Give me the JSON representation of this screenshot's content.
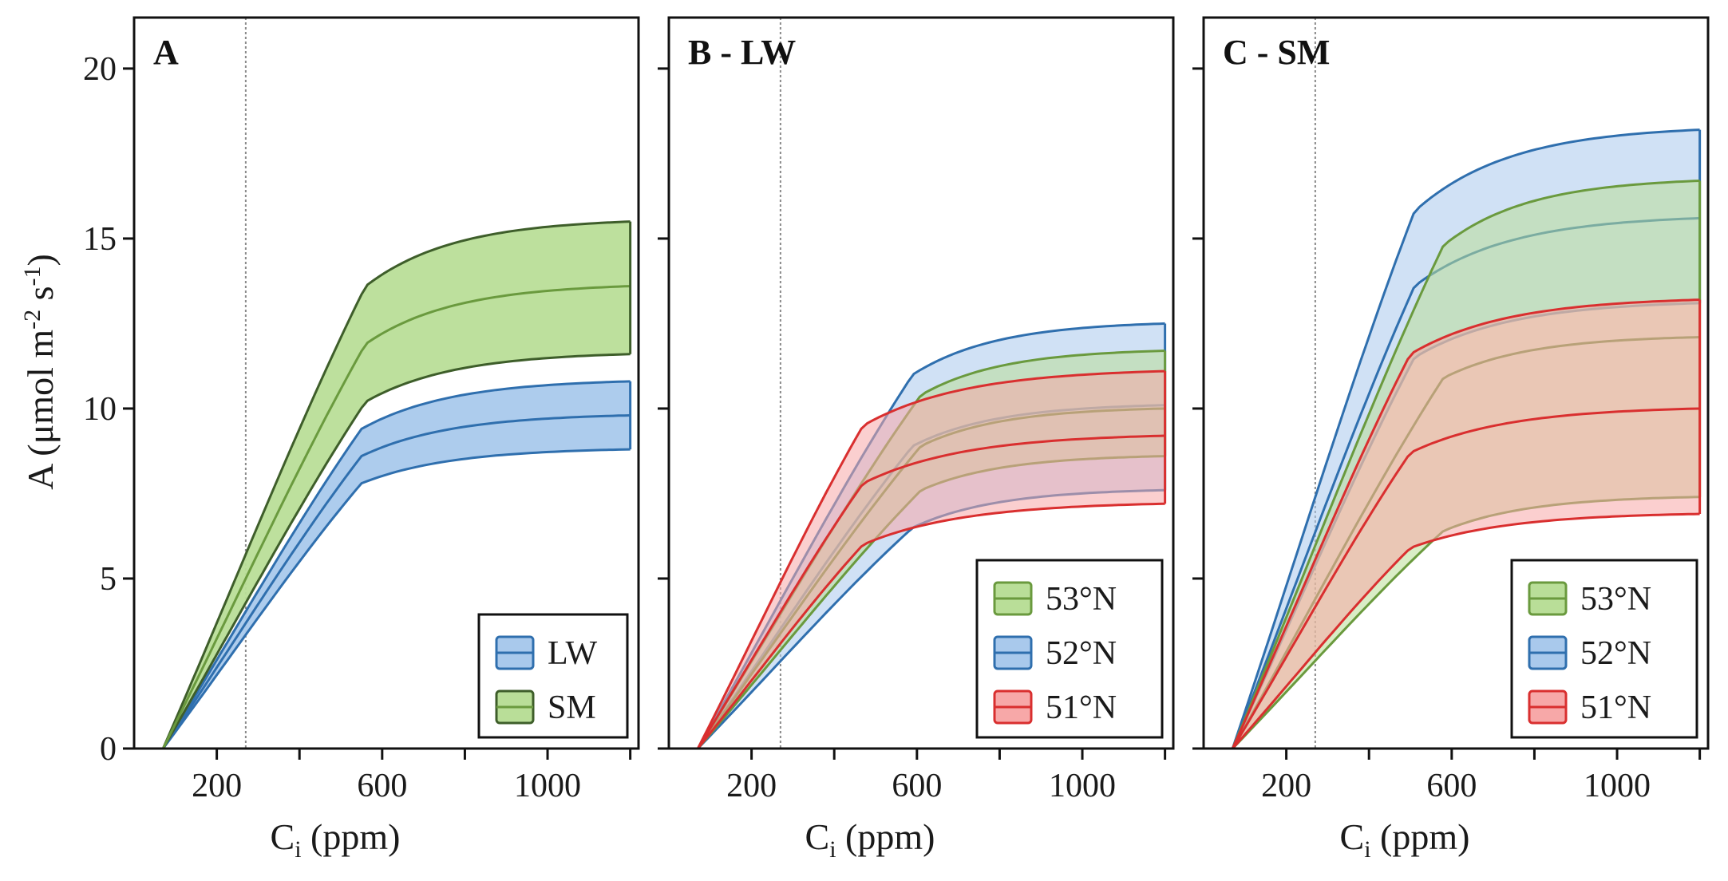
{
  "figure": {
    "y_axis_label": {
      "prefix": "A (μmol m",
      "sup1": "-2",
      "mid": " s",
      "sup2": "-1",
      "suffix": ")"
    },
    "x_axis_label": {
      "main": "C",
      "sub": "i",
      "suffix": " (ppm)"
    },
    "colors": {
      "LW_fill": "#a9c9ec",
      "LW_line": "#2f6fae",
      "SM_fill": "#b9de98",
      "SM_line": "#6a9a3e",
      "SM_edge": "#3e5e2a",
      "lat53_fill": "#b9de98",
      "lat53_line": "#6a9a3e",
      "lat52_fill": "#a9c9ec",
      "lat52_line": "#2f6fae",
      "lat51_fill": "#f7a8a8",
      "lat51_line": "#d92f2f",
      "ref_line": "#8a8a8a"
    }
  },
  "chart_data": [
    {
      "type": "area",
      "title": "A",
      "xlim": [
        0,
        1220
      ],
      "ylim": [
        0,
        21.5
      ],
      "xticks": [
        200,
        600,
        1000
      ],
      "xminor": [
        400,
        800,
        1200
      ],
      "yticks": [
        0,
        5,
        10,
        15,
        20
      ],
      "show_y_tick_labels": true,
      "reference_x": 270,
      "legend": {
        "position": "bottom-right",
        "entries": [
          {
            "label": "LW",
            "series": "LW"
          },
          {
            "label": "SM",
            "series": "SM"
          }
        ]
      },
      "series": [
        {
          "name": "LW",
          "color_key": "LW",
          "x0": 70,
          "xb": 550,
          "xmax": 1200,
          "lower_b": 7.8,
          "lower_end": 8.8,
          "mid_b": 8.6,
          "mid_end": 9.8,
          "upper_b": 9.4,
          "upper_end": 10.8
        },
        {
          "name": "SM",
          "color_key": "SM",
          "x0": 70,
          "xb": 560,
          "xmax": 1200,
          "lower_b": 10.2,
          "lower_end": 11.6,
          "mid_b": 11.9,
          "mid_end": 13.6,
          "upper_b": 13.6,
          "upper_end": 15.5
        }
      ]
    },
    {
      "type": "area",
      "title": "B - LW",
      "xlim": [
        0,
        1220
      ],
      "ylim": [
        0,
        21.5
      ],
      "xticks": [
        200,
        600,
        1000
      ],
      "xminor": [
        400,
        800,
        1200
      ],
      "yticks": [
        0,
        5,
        10,
        15,
        20
      ],
      "show_y_tick_labels": false,
      "reference_x": 270,
      "legend": {
        "position": "bottom-right",
        "entries": [
          {
            "label": "53°N",
            "series": "lat53"
          },
          {
            "label": "52°N",
            "series": "lat52"
          },
          {
            "label": "51°N",
            "series": "lat51"
          }
        ]
      },
      "series": [
        {
          "name": "52°N",
          "color_key": "lat52",
          "x0": 70,
          "xb": 590,
          "xmax": 1200,
          "lower_b": 6.5,
          "lower_end": 7.6,
          "mid_b": 8.9,
          "mid_end": 10.1,
          "upper_b": 11.0,
          "upper_end": 12.5
        },
        {
          "name": "53°N",
          "color_key": "lat53",
          "x0": 70,
          "xb": 610,
          "xmax": 1200,
          "lower_b": 7.6,
          "lower_end": 8.6,
          "mid_b": 8.9,
          "mid_end": 10.0,
          "upper_b": 10.4,
          "upper_end": 11.7
        },
        {
          "name": "51°N",
          "color_key": "lat51",
          "x0": 70,
          "xb": 470,
          "xmax": 1200,
          "lower_b": 6.0,
          "lower_end": 7.2,
          "mid_b": 7.8,
          "mid_end": 9.2,
          "upper_b": 9.5,
          "upper_end": 11.1
        }
      ]
    },
    {
      "type": "area",
      "title": "C - SM",
      "xlim": [
        0,
        1220
      ],
      "ylim": [
        0,
        21.5
      ],
      "xticks": [
        200,
        600,
        1000
      ],
      "xminor": [
        400,
        800,
        1200
      ],
      "yticks": [
        0,
        5,
        10,
        15,
        20
      ],
      "show_y_tick_labels": false,
      "reference_x": 270,
      "legend": {
        "position": "bottom-right",
        "entries": [
          {
            "label": "53°N",
            "series": "lat53"
          },
          {
            "label": "52°N",
            "series": "lat52"
          },
          {
            "label": "51°N",
            "series": "lat51"
          }
        ]
      },
      "series": [
        {
          "name": "52°N",
          "color_key": "lat52",
          "x0": 70,
          "xb": 510,
          "xmax": 1200,
          "lower_b": 11.5,
          "lower_end": 13.1,
          "mid_b": 13.6,
          "mid_end": 15.6,
          "upper_b": 15.8,
          "upper_end": 18.2
        },
        {
          "name": "53°N",
          "color_key": "lat53",
          "x0": 70,
          "xb": 580,
          "xmax": 1200,
          "lower_b": 6.4,
          "lower_end": 7.4,
          "mid_b": 10.9,
          "mid_end": 12.1,
          "upper_b": 14.8,
          "upper_end": 16.7
        },
        {
          "name": "51°N",
          "color_key": "lat51",
          "x0": 70,
          "xb": 500,
          "xmax": 1200,
          "lower_b": 5.9,
          "lower_end": 6.9,
          "mid_b": 8.7,
          "mid_end": 10.0,
          "upper_b": 11.6,
          "upper_end": 13.2
        }
      ]
    }
  ]
}
